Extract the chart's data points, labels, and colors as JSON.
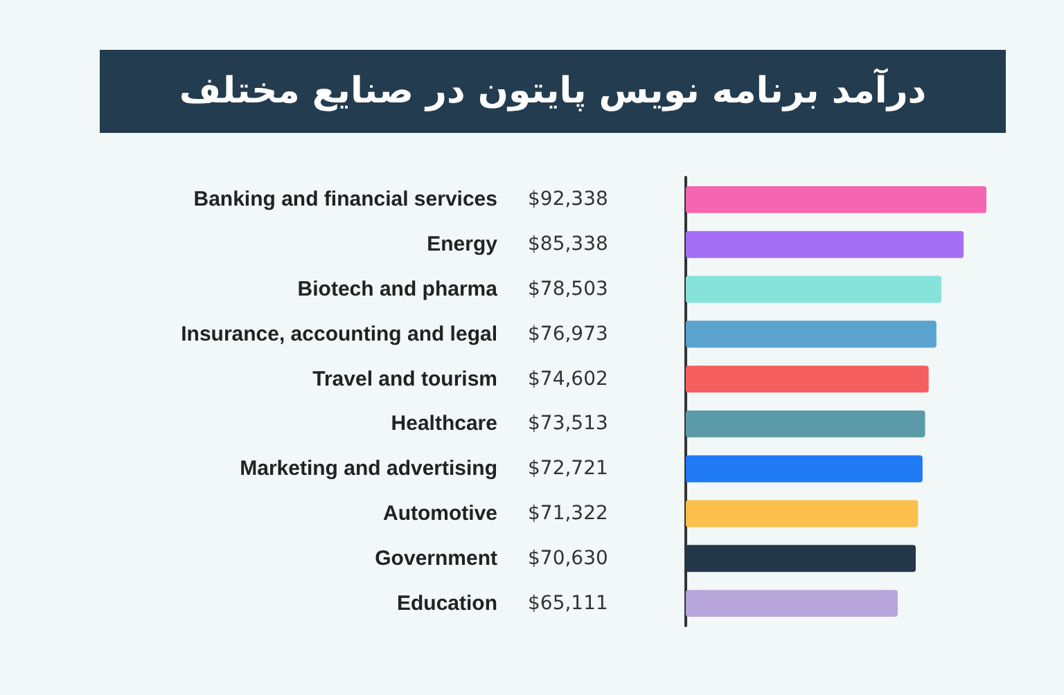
{
  "chart_data": {
    "type": "bar",
    "orientation": "horizontal",
    "title": "درآمد برنامه نویس پایتون در صنایع مختلف",
    "categories": [
      "Banking and financial services",
      "Energy",
      "Biotech and pharma",
      "Insurance, accounting and legal",
      "Travel and tourism",
      "Healthcare",
      "Marketing and advertising",
      "Automotive",
      "Government",
      "Education"
    ],
    "values": [
      92338,
      85338,
      78503,
      76973,
      74602,
      73513,
      72721,
      71322,
      70630,
      65111
    ],
    "value_labels": [
      "$92,338",
      "$85,338",
      "$78,503",
      "$76,973",
      "$74,602",
      "$73,513",
      "$72,721",
      "$71,322",
      "$70,630",
      "$65,111"
    ],
    "colors": [
      "#f566b0",
      "#a46ff4",
      "#86e3da",
      "#5ba3cf",
      "#f55f5f",
      "#5b9ba9",
      "#1f7af4",
      "#fdbf4b",
      "#233749",
      "#b7a5da"
    ],
    "data_labels": false
  }
}
